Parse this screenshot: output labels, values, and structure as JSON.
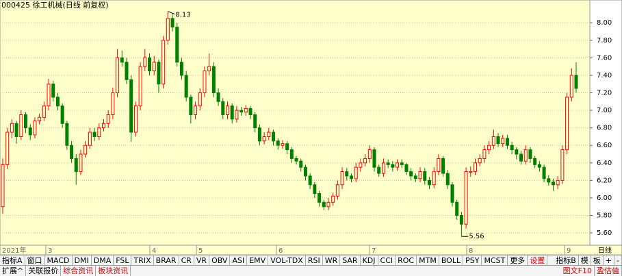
{
  "header": {
    "title": "000425 徐工机械(日线 前复权)"
  },
  "chart_data": {
    "type": "candlestick",
    "ylim": [
      5.46,
      8.26
    ],
    "yticks": [
      {
        "value": 5.6,
        "label": "5.60"
      },
      {
        "value": 5.8,
        "label": "5.80"
      },
      {
        "value": 6.0,
        "label": "6.00"
      },
      {
        "value": 6.2,
        "label": "6.20"
      },
      {
        "value": 6.4,
        "label": "6.40"
      },
      {
        "value": 6.6,
        "label": "6.60"
      },
      {
        "value": 6.8,
        "label": "6.80"
      },
      {
        "value": 7.0,
        "label": "7.00"
      },
      {
        "value": 7.2,
        "label": "7.20"
      },
      {
        "value": 7.4,
        "label": "7.40"
      },
      {
        "value": 7.6,
        "label": "7.60"
      },
      {
        "value": 7.8,
        "label": "7.80"
      },
      {
        "value": 8.0,
        "label": "8.00"
      }
    ],
    "grid": true,
    "up_color": "#ff0000",
    "down_color": "#008000",
    "x_labels": [
      "2021年",
      "3",
      "4",
      "5",
      "6",
      "7",
      "8",
      "9"
    ],
    "max_label": 8.13,
    "min_label": 5.56,
    "candles": [
      [
        5.9,
        6.45,
        5.82,
        6.38
      ],
      [
        6.38,
        6.8,
        6.33,
        6.75
      ],
      [
        6.75,
        6.9,
        6.68,
        6.85
      ],
      [
        6.85,
        6.88,
        6.62,
        6.7
      ],
      [
        6.7,
        7.0,
        6.66,
        6.95
      ],
      [
        6.95,
        6.98,
        6.74,
        6.8
      ],
      [
        6.8,
        6.84,
        6.66,
        6.72
      ],
      [
        6.72,
        6.92,
        6.68,
        6.88
      ],
      [
        6.88,
        6.96,
        6.84,
        6.92
      ],
      [
        6.92,
        7.1,
        6.88,
        7.05
      ],
      [
        7.05,
        7.36,
        7.0,
        7.3
      ],
      [
        7.3,
        7.34,
        7.1,
        7.15
      ],
      [
        7.15,
        7.2,
        7.0,
        7.05
      ],
      [
        7.05,
        7.08,
        6.8,
        6.85
      ],
      [
        6.85,
        6.88,
        6.55,
        6.6
      ],
      [
        6.6,
        6.65,
        6.4,
        6.45
      ],
      [
        6.45,
        6.5,
        6.15,
        6.3
      ],
      [
        6.3,
        6.55,
        6.26,
        6.5
      ],
      [
        6.5,
        6.65,
        6.46,
        6.6
      ],
      [
        6.6,
        6.8,
        6.56,
        6.75
      ],
      [
        6.75,
        6.8,
        6.65,
        6.7
      ],
      [
        6.7,
        6.85,
        6.66,
        6.8
      ],
      [
        6.8,
        6.9,
        6.76,
        6.85
      ],
      [
        6.85,
        7.0,
        6.8,
        6.95
      ],
      [
        6.95,
        7.26,
        6.9,
        7.2
      ],
      [
        7.2,
        7.7,
        7.15,
        7.6
      ],
      [
        7.6,
        7.68,
        7.5,
        7.55
      ],
      [
        7.55,
        7.6,
        7.3,
        7.35
      ],
      [
        7.35,
        7.4,
        6.64,
        6.75
      ],
      [
        6.75,
        7.1,
        6.7,
        7.05
      ],
      [
        7.05,
        7.55,
        7.0,
        7.5
      ],
      [
        7.5,
        7.7,
        7.45,
        7.6
      ],
      [
        7.6,
        7.65,
        7.4,
        7.45
      ],
      [
        7.45,
        7.62,
        7.4,
        7.55
      ],
      [
        7.55,
        7.58,
        7.2,
        7.3
      ],
      [
        7.3,
        7.85,
        7.25,
        7.8
      ],
      [
        7.8,
        8.13,
        7.75,
        8.05
      ],
      [
        8.05,
        8.1,
        7.9,
        7.95
      ],
      [
        7.95,
        8.0,
        7.5,
        7.55
      ],
      [
        7.55,
        7.6,
        7.35,
        7.4
      ],
      [
        7.4,
        7.45,
        7.1,
        7.15
      ],
      [
        7.15,
        7.18,
        6.85,
        6.95
      ],
      [
        6.95,
        7.1,
        6.9,
        7.05
      ],
      [
        7.05,
        7.25,
        7.0,
        7.2
      ],
      [
        7.2,
        7.5,
        7.15,
        7.45
      ],
      [
        7.45,
        7.65,
        7.4,
        7.5
      ],
      [
        7.5,
        7.55,
        7.15,
        7.2
      ],
      [
        7.2,
        7.25,
        7.05,
        7.1
      ],
      [
        7.1,
        7.14,
        6.9,
        6.95
      ],
      [
        6.95,
        7.1,
        6.9,
        7.05
      ],
      [
        7.05,
        7.08,
        6.85,
        6.9
      ],
      [
        6.9,
        7.05,
        6.86,
        7.0
      ],
      [
        7.0,
        7.04,
        6.94,
        6.98
      ],
      [
        6.98,
        7.06,
        6.94,
        7.02
      ],
      [
        7.02,
        7.05,
        6.9,
        6.95
      ],
      [
        6.95,
        6.98,
        6.75,
        6.8
      ],
      [
        6.8,
        6.84,
        6.6,
        6.65
      ],
      [
        6.65,
        6.75,
        6.61,
        6.7
      ],
      [
        6.7,
        6.8,
        6.66,
        6.75
      ],
      [
        6.75,
        6.78,
        6.6,
        6.65
      ],
      [
        6.65,
        6.68,
        6.55,
        6.6
      ],
      [
        6.6,
        6.66,
        6.56,
        6.62
      ],
      [
        6.62,
        6.65,
        6.5,
        6.55
      ],
      [
        6.55,
        6.58,
        6.4,
        6.45
      ],
      [
        6.45,
        6.48,
        6.38,
        6.42
      ],
      [
        6.42,
        6.45,
        6.3,
        6.35
      ],
      [
        6.35,
        6.38,
        6.2,
        6.25
      ],
      [
        6.25,
        6.28,
        6.1,
        6.15
      ],
      [
        6.15,
        6.18,
        6.0,
        6.05
      ],
      [
        6.05,
        6.08,
        5.9,
        5.95
      ],
      [
        5.95,
        5.98,
        5.86,
        5.9
      ],
      [
        5.9,
        6.0,
        5.86,
        5.95
      ],
      [
        5.95,
        6.06,
        5.91,
        6.02
      ],
      [
        6.02,
        6.2,
        5.98,
        6.15
      ],
      [
        6.15,
        6.35,
        6.1,
        6.3
      ],
      [
        6.3,
        6.34,
        6.2,
        6.25
      ],
      [
        6.25,
        6.28,
        6.18,
        6.22
      ],
      [
        6.22,
        6.4,
        6.18,
        6.35
      ],
      [
        6.35,
        6.45,
        6.3,
        6.4
      ],
      [
        6.4,
        6.5,
        6.36,
        6.45
      ],
      [
        6.45,
        6.6,
        6.4,
        6.55
      ],
      [
        6.55,
        6.58,
        6.3,
        6.35
      ],
      [
        6.35,
        6.38,
        6.24,
        6.28
      ],
      [
        6.28,
        6.45,
        6.24,
        6.4
      ],
      [
        6.4,
        6.44,
        6.34,
        6.38
      ],
      [
        6.38,
        6.42,
        6.3,
        6.35
      ],
      [
        6.35,
        6.44,
        6.31,
        6.4
      ],
      [
        6.4,
        6.44,
        6.34,
        6.38
      ],
      [
        6.38,
        6.4,
        6.26,
        6.3
      ],
      [
        6.3,
        6.34,
        6.2,
        6.25
      ],
      [
        6.25,
        6.28,
        6.18,
        6.22
      ],
      [
        6.22,
        6.35,
        6.18,
        6.3
      ],
      [
        6.3,
        6.34,
        6.15,
        6.2
      ],
      [
        6.2,
        6.24,
        6.1,
        6.15
      ],
      [
        6.15,
        6.35,
        6.11,
        6.3
      ],
      [
        6.3,
        6.5,
        6.26,
        6.45
      ],
      [
        6.45,
        6.48,
        6.24,
        6.28
      ],
      [
        6.28,
        6.32,
        6.1,
        6.15
      ],
      [
        6.15,
        6.18,
        5.9,
        5.95
      ],
      [
        5.95,
        5.98,
        5.75,
        5.8
      ],
      [
        5.8,
        5.84,
        5.56,
        5.7
      ],
      [
        5.7,
        6.35,
        5.65,
        6.3
      ],
      [
        6.3,
        6.36,
        6.24,
        6.3
      ],
      [
        6.3,
        6.45,
        6.26,
        6.4
      ],
      [
        6.4,
        6.5,
        6.36,
        6.45
      ],
      [
        6.45,
        6.6,
        6.4,
        6.55
      ],
      [
        6.55,
        6.65,
        6.5,
        6.6
      ],
      [
        6.6,
        6.78,
        6.56,
        6.7
      ],
      [
        6.7,
        6.74,
        6.58,
        6.62
      ],
      [
        6.62,
        6.72,
        6.58,
        6.68
      ],
      [
        6.68,
        6.72,
        6.56,
        6.6
      ],
      [
        6.6,
        6.64,
        6.5,
        6.55
      ],
      [
        6.55,
        6.58,
        6.44,
        6.5
      ],
      [
        6.5,
        6.54,
        6.38,
        6.42
      ],
      [
        6.42,
        6.6,
        6.38,
        6.55
      ],
      [
        6.55,
        6.58,
        6.4,
        6.45
      ],
      [
        6.45,
        6.48,
        6.34,
        6.38
      ],
      [
        6.38,
        6.42,
        6.3,
        6.35
      ],
      [
        6.35,
        6.38,
        6.18,
        6.22
      ],
      [
        6.22,
        6.26,
        6.14,
        6.18
      ],
      [
        6.18,
        6.22,
        6.08,
        6.15
      ],
      [
        6.15,
        6.25,
        6.1,
        6.2
      ],
      [
        6.2,
        6.6,
        6.16,
        6.55
      ],
      [
        6.55,
        7.2,
        6.5,
        7.15
      ],
      [
        7.15,
        7.48,
        7.1,
        7.4
      ],
      [
        7.4,
        7.55,
        7.2,
        7.25
      ]
    ]
  },
  "side_panel": {
    "period": "日线",
    "buttons": [
      "+",
      "-"
    ]
  },
  "toolbar": {
    "indicators": [
      "指标A",
      "窗口",
      "MACD",
      "DMI",
      "DMA",
      "FSL",
      "TRIX",
      "BRAR",
      "CR",
      "VR",
      "OBV",
      "ASI",
      "EMV",
      "VOL-TDX",
      "RSI",
      "WR",
      "SAR",
      "KDJ",
      "CCI",
      "ROC",
      "MTM",
      "BOLL",
      "PSY",
      "MCST",
      "更多",
      "设置"
    ],
    "right": [
      "指标B",
      "模",
      "板"
    ]
  },
  "tabs": {
    "left": [
      "扩展^",
      "关联报价",
      "综合资讯",
      "板块资讯"
    ],
    "right": [
      "图文F10",
      "盈估值"
    ]
  }
}
